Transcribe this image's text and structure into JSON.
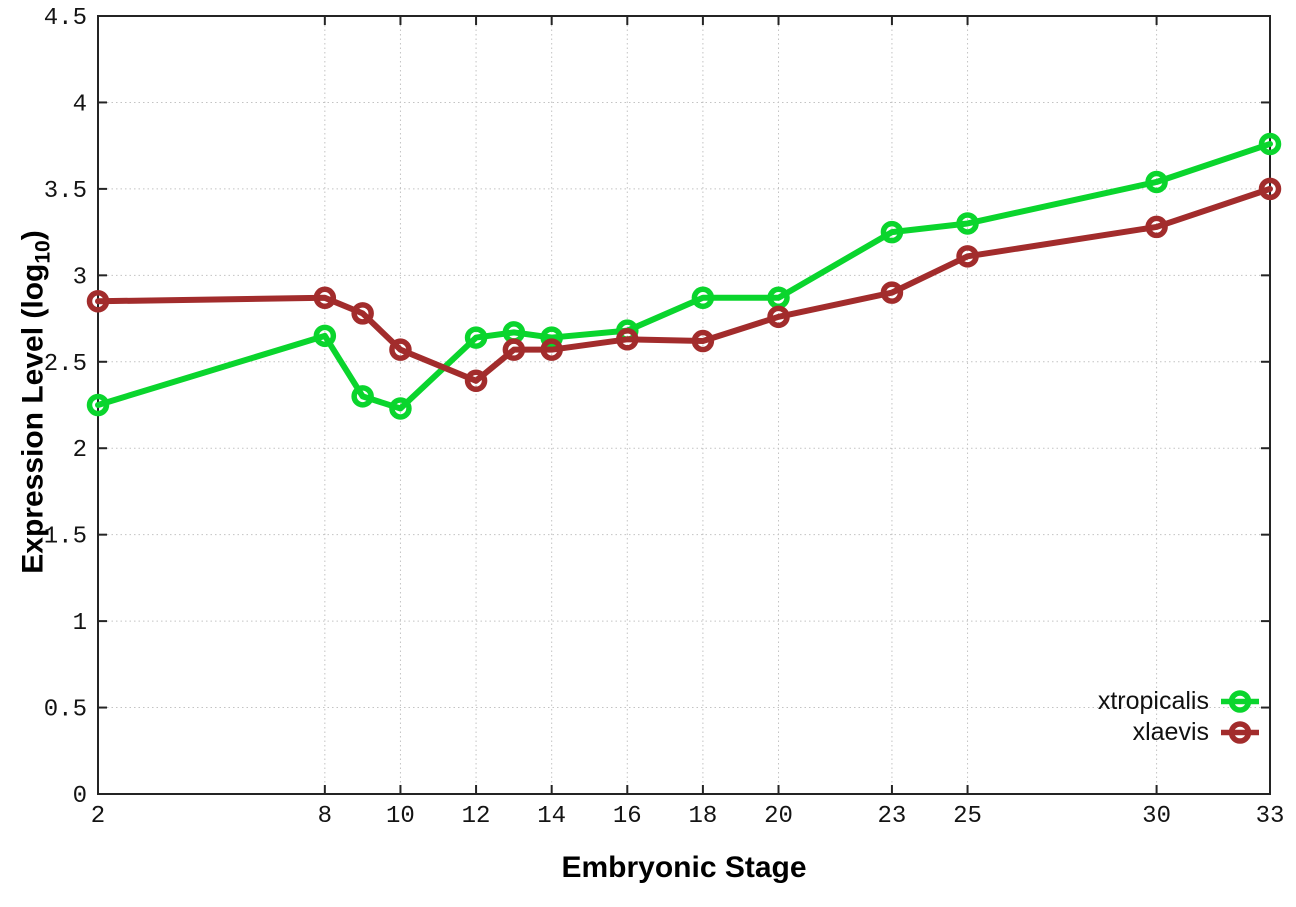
{
  "figure": {
    "background": "#ffffff"
  },
  "axes": {
    "x": {
      "title": "Embryonic Stage",
      "ticks": [
        2,
        8,
        10,
        12,
        14,
        16,
        18,
        20,
        23,
        25,
        30,
        33
      ],
      "tick_labels": [
        "2",
        "8",
        "10",
        "12",
        "14",
        "16",
        "18",
        "20",
        "23",
        "25",
        "30",
        "33"
      ]
    },
    "y": {
      "title_prefix": "Expression Level (log",
      "title_sub": "10",
      "title_suffix": ")",
      "ticks": [
        0,
        0.5,
        1,
        1.5,
        2,
        2.5,
        3,
        3.5,
        4,
        4.5
      ],
      "tick_labels": [
        "0",
        "0.5",
        "1",
        "1.5",
        "2",
        "2.5",
        "3",
        "3.5",
        "4",
        "4.5"
      ]
    }
  },
  "chart_data": {
    "type": "line",
    "title": "",
    "xlabel": "Embryonic Stage",
    "ylabel": "Expression Level (log10)",
    "x": [
      2,
      8,
      9,
      10,
      12,
      13,
      14,
      16,
      18,
      20,
      23,
      25,
      30,
      33
    ],
    "series": [
      {
        "name": "xtropicalis",
        "color": "#0ad52d",
        "values": [
          2.25,
          2.65,
          2.3,
          2.23,
          2.64,
          2.67,
          2.64,
          2.68,
          2.87,
          2.87,
          3.25,
          3.3,
          3.54,
          3.76
        ]
      },
      {
        "name": "xlaevis",
        "color": "#a22c2c",
        "values": [
          2.85,
          2.87,
          2.78,
          2.57,
          2.39,
          2.57,
          2.57,
          2.63,
          2.62,
          2.76,
          2.9,
          3.11,
          3.28,
          3.5
        ]
      }
    ],
    "xlim": [
      2,
      33
    ],
    "ylim": [
      0,
      4.5
    ],
    "grid": true,
    "marker": "open-circle",
    "legend_position": "bottom-right-inside"
  }
}
